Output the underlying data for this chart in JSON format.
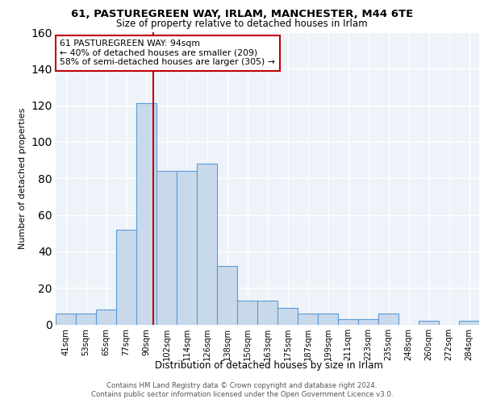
{
  "title_line1": "61, PASTUREGREEN WAY, IRLAM, MANCHESTER, M44 6TE",
  "title_line2": "Size of property relative to detached houses in Irlam",
  "xlabel": "Distribution of detached houses by size in Irlam",
  "ylabel": "Number of detached properties",
  "bin_labels": [
    "41sqm",
    "53sqm",
    "65sqm",
    "77sqm",
    "90sqm",
    "102sqm",
    "114sqm",
    "126sqm",
    "138sqm",
    "150sqm",
    "163sqm",
    "175sqm",
    "187sqm",
    "199sqm",
    "211sqm",
    "223sqm",
    "235sqm",
    "248sqm",
    "260sqm",
    "272sqm",
    "284sqm"
  ],
  "bar_heights": [
    6,
    6,
    8,
    52,
    121,
    84,
    84,
    88,
    32,
    13,
    13,
    9,
    6,
    6,
    3,
    3,
    6,
    0,
    2,
    0,
    2
  ],
  "bar_color": "#c9d9ec",
  "bar_edge_color": "#5b9bd5",
  "property_label": "61 PASTUREGREEN WAY: 94sqm",
  "annotation_line2": "← 40% of detached houses are smaller (209)",
  "annotation_line3": "58% of semi-detached houses are larger (305) →",
  "red_line_color": "#c00000",
  "annotation_box_edge": "#c00000",
  "ylim": [
    0,
    160
  ],
  "yticks": [
    0,
    20,
    40,
    60,
    80,
    100,
    120,
    140,
    160
  ],
  "red_line_x": 4.33,
  "footer_line1": "Contains HM Land Registry data © Crown copyright and database right 2024.",
  "footer_line2": "Contains public sector information licensed under the Open Government Licence v3.0.",
  "plot_background": "#eef3fa",
  "grid_color": "#ffffff"
}
